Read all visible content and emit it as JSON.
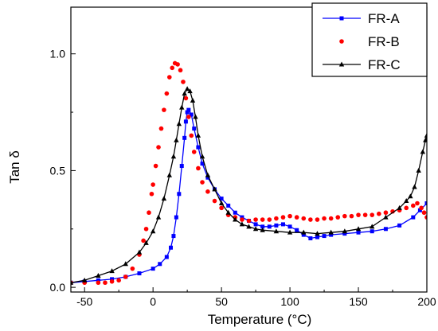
{
  "chart_data": {
    "type": "scatter",
    "title": "",
    "xlabel": "Temperature (°C)",
    "ylabel": "Tan δ",
    "xlim": [
      -60,
      200
    ],
    "ylim": [
      -0.02,
      1.2
    ],
    "x_ticks": [
      -50,
      0,
      50,
      100,
      150,
      200
    ],
    "x_tick_labels": [
      "-50",
      "0",
      "50",
      "100",
      "150",
      "200"
    ],
    "y_ticks": [
      0.0,
      0.5,
      1.0
    ],
    "y_tick_labels": [
      "0.0",
      "0.5",
      "1.0"
    ],
    "grid": false,
    "legend_position": "top-right",
    "series": [
      {
        "name": "FR-A",
        "color": "#0000ff",
        "marker": "square",
        "line": true,
        "points": [
          [
            -60,
            0.02
          ],
          [
            -50,
            0.025
          ],
          [
            -40,
            0.03
          ],
          [
            -30,
            0.035
          ],
          [
            -20,
            0.045
          ],
          [
            -10,
            0.06
          ],
          [
            0,
            0.08
          ],
          [
            5,
            0.1
          ],
          [
            10,
            0.13
          ],
          [
            13,
            0.17
          ],
          [
            15,
            0.22
          ],
          [
            17,
            0.3
          ],
          [
            19,
            0.4
          ],
          [
            21,
            0.52
          ],
          [
            23,
            0.64
          ],
          [
            24,
            0.71
          ],
          [
            25,
            0.75
          ],
          [
            26,
            0.76
          ],
          [
            28,
            0.74
          ],
          [
            30,
            0.68
          ],
          [
            33,
            0.6
          ],
          [
            36,
            0.53
          ],
          [
            40,
            0.47
          ],
          [
            45,
            0.42
          ],
          [
            50,
            0.38
          ],
          [
            55,
            0.35
          ],
          [
            60,
            0.32
          ],
          [
            65,
            0.3
          ],
          [
            70,
            0.285
          ],
          [
            75,
            0.27
          ],
          [
            80,
            0.26
          ],
          [
            85,
            0.26
          ],
          [
            90,
            0.265
          ],
          [
            95,
            0.27
          ],
          [
            100,
            0.26
          ],
          [
            105,
            0.245
          ],
          [
            110,
            0.225
          ],
          [
            115,
            0.21
          ],
          [
            120,
            0.215
          ],
          [
            125,
            0.22
          ],
          [
            130,
            0.225
          ],
          [
            140,
            0.23
          ],
          [
            150,
            0.235
          ],
          [
            160,
            0.24
          ],
          [
            170,
            0.25
          ],
          [
            180,
            0.265
          ],
          [
            190,
            0.3
          ],
          [
            195,
            0.33
          ],
          [
            200,
            0.36
          ]
        ]
      },
      {
        "name": "FR-B",
        "color": "#ff0000",
        "marker": "circle",
        "line": false,
        "points": [
          [
            -60,
            0.02
          ],
          [
            -50,
            0.02
          ],
          [
            -40,
            0.02
          ],
          [
            -35,
            0.02
          ],
          [
            -30,
            0.025
          ],
          [
            -25,
            0.03
          ],
          [
            -20,
            0.045
          ],
          [
            -15,
            0.08
          ],
          [
            -10,
            0.14
          ],
          [
            -7,
            0.2
          ],
          [
            -5,
            0.25
          ],
          [
            -3,
            0.32
          ],
          [
            -1,
            0.4
          ],
          [
            0,
            0.44
          ],
          [
            2,
            0.52
          ],
          [
            4,
            0.6
          ],
          [
            6,
            0.68
          ],
          [
            8,
            0.76
          ],
          [
            10,
            0.83
          ],
          [
            12,
            0.9
          ],
          [
            14,
            0.94
          ],
          [
            16,
            0.96
          ],
          [
            18,
            0.955
          ],
          [
            20,
            0.93
          ],
          [
            22,
            0.88
          ],
          [
            24,
            0.81
          ],
          [
            26,
            0.73
          ],
          [
            28,
            0.65
          ],
          [
            30,
            0.58
          ],
          [
            33,
            0.51
          ],
          [
            36,
            0.45
          ],
          [
            40,
            0.41
          ],
          [
            45,
            0.37
          ],
          [
            50,
            0.34
          ],
          [
            55,
            0.31
          ],
          [
            60,
            0.3
          ],
          [
            65,
            0.29
          ],
          [
            70,
            0.285
          ],
          [
            75,
            0.29
          ],
          [
            80,
            0.29
          ],
          [
            85,
            0.29
          ],
          [
            90,
            0.295
          ],
          [
            95,
            0.3
          ],
          [
            100,
            0.305
          ],
          [
            105,
            0.3
          ],
          [
            110,
            0.295
          ],
          [
            115,
            0.29
          ],
          [
            120,
            0.29
          ],
          [
            125,
            0.295
          ],
          [
            130,
            0.295
          ],
          [
            135,
            0.3
          ],
          [
            140,
            0.305
          ],
          [
            145,
            0.305
          ],
          [
            150,
            0.31
          ],
          [
            155,
            0.31
          ],
          [
            160,
            0.31
          ],
          [
            165,
            0.315
          ],
          [
            170,
            0.32
          ],
          [
            175,
            0.325
          ],
          [
            180,
            0.33
          ],
          [
            185,
            0.34
          ],
          [
            190,
            0.35
          ],
          [
            193,
            0.36
          ],
          [
            196,
            0.34
          ],
          [
            198,
            0.32
          ],
          [
            200,
            0.3
          ]
        ]
      },
      {
        "name": "FR-C",
        "color": "#000000",
        "marker": "triangle",
        "line": true,
        "points": [
          [
            -60,
            0.02
          ],
          [
            -50,
            0.03
          ],
          [
            -40,
            0.05
          ],
          [
            -30,
            0.07
          ],
          [
            -20,
            0.1
          ],
          [
            -10,
            0.15
          ],
          [
            -5,
            0.19
          ],
          [
            0,
            0.24
          ],
          [
            4,
            0.3
          ],
          [
            8,
            0.38
          ],
          [
            12,
            0.48
          ],
          [
            15,
            0.56
          ],
          [
            17,
            0.63
          ],
          [
            19,
            0.7
          ],
          [
            21,
            0.77
          ],
          [
            23,
            0.83
          ],
          [
            25,
            0.85
          ],
          [
            27,
            0.84
          ],
          [
            29,
            0.8
          ],
          [
            31,
            0.73
          ],
          [
            33,
            0.65
          ],
          [
            36,
            0.56
          ],
          [
            40,
            0.48
          ],
          [
            45,
            0.42
          ],
          [
            50,
            0.36
          ],
          [
            55,
            0.32
          ],
          [
            60,
            0.29
          ],
          [
            65,
            0.27
          ],
          [
            70,
            0.26
          ],
          [
            75,
            0.25
          ],
          [
            80,
            0.245
          ],
          [
            90,
            0.24
          ],
          [
            100,
            0.235
          ],
          [
            110,
            0.235
          ],
          [
            120,
            0.23
          ],
          [
            130,
            0.235
          ],
          [
            140,
            0.24
          ],
          [
            150,
            0.25
          ],
          [
            160,
            0.26
          ],
          [
            170,
            0.3
          ],
          [
            180,
            0.34
          ],
          [
            185,
            0.37
          ],
          [
            188,
            0.39
          ],
          [
            191,
            0.43
          ],
          [
            194,
            0.5
          ],
          [
            197,
            0.58
          ],
          [
            199,
            0.63
          ],
          [
            200,
            0.65
          ]
        ]
      }
    ]
  }
}
